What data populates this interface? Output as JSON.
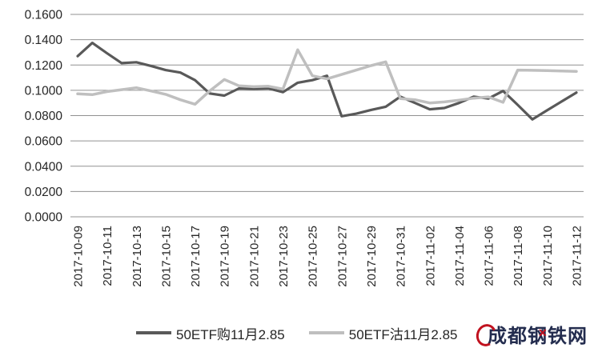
{
  "chart_data": {
    "type": "line",
    "title": "",
    "xlabel": "",
    "ylabel": "",
    "ylim": [
      0.0,
      0.16
    ],
    "y_step": 0.02,
    "grid": "on",
    "grid_color": "#909090",
    "legend_position": "bottom",
    "y_tick_labels": [
      "0.1600",
      "0.1400",
      "0.1200",
      "0.1000",
      "0.0800",
      "0.0600",
      "0.0400",
      "0.0200",
      "0.0000"
    ],
    "x_tick_labels": [
      "2017-10-09",
      "2017-10-11",
      "2017-10-13",
      "2017-10-15",
      "2017-10-17",
      "2017-10-19",
      "2017-10-21",
      "2017-10-23",
      "2017-10-25",
      "2017-10-27",
      "2017-10-29",
      "2017-10-31",
      "2017-11-02",
      "2017-11-04",
      "2017-11-06",
      "2017-11-08",
      "2017-11-10",
      "2017-11-12"
    ],
    "points_per_tick": 2,
    "series": [
      {
        "name": "50ETF购11月2.85",
        "color": "#595959",
        "stroke_width": 3.2,
        "values": [
          0.127,
          0.1375,
          0.1293,
          0.1215,
          0.1222,
          0.1193,
          0.116,
          0.114,
          0.108,
          0.0975,
          0.0958,
          0.1015,
          0.1012,
          0.1015,
          0.0985,
          0.106,
          0.108,
          0.1115,
          0.0795,
          0.0815,
          0.0845,
          0.087,
          0.095,
          0.09,
          0.085,
          0.086,
          0.09,
          0.095,
          0.0935,
          0.0995,
          0.0885,
          0.077,
          0.0842,
          0.0912,
          0.0982
        ]
      },
      {
        "name": "50ETF沽11月2.85",
        "color": "#bfbfbf",
        "stroke_width": 3.5,
        "values": [
          0.0972,
          0.0966,
          0.099,
          0.1005,
          0.102,
          0.0995,
          0.0968,
          0.0925,
          0.089,
          0.0995,
          0.1085,
          0.1035,
          0.1028,
          0.1032,
          0.101,
          0.132,
          0.1115,
          0.109,
          0.1125,
          0.116,
          0.1195,
          0.1225,
          0.0935,
          0.0925,
          0.09,
          0.0908,
          0.0922,
          0.0938,
          0.0948,
          0.0905,
          0.116,
          0.1158,
          0.1156,
          0.1152,
          0.115
        ]
      }
    ]
  },
  "watermark": {
    "text": "成都钢铁网",
    "text_color": "#232c4e",
    "accent_color": "#c1121f"
  }
}
